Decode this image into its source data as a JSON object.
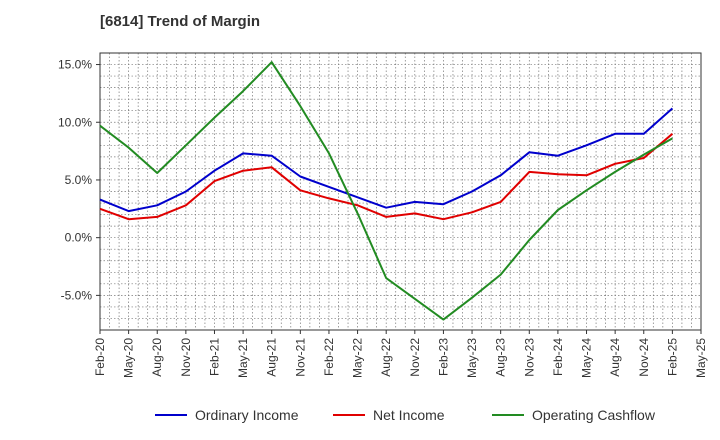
{
  "chart_data": {
    "type": "line",
    "title": "[6814]  Trend of Margin",
    "x": [
      "Feb-20",
      "May-20",
      "Aug-20",
      "Nov-20",
      "Feb-21",
      "May-21",
      "Aug-21",
      "Nov-21",
      "Feb-22",
      "May-22",
      "Aug-22",
      "Nov-22",
      "Feb-23",
      "May-23",
      "Aug-23",
      "Nov-23",
      "Feb-24",
      "May-24",
      "Aug-24",
      "Nov-24",
      "Feb-25",
      "May-25"
    ],
    "y_ticks": [
      15,
      10,
      5,
      0,
      -5
    ],
    "y_tick_labels": [
      "15.0%",
      "10.0%",
      "5.0%",
      "0.0%",
      "-5.0%"
    ],
    "ylim": [
      -8,
      16
    ],
    "grid": true,
    "legend_position": "bottom",
    "series": [
      {
        "name": "Ordinary Income",
        "color": "#0000cc",
        "values": [
          3.3,
          2.3,
          2.8,
          4.0,
          5.8,
          7.3,
          7.1,
          5.3,
          4.4,
          3.5,
          2.6,
          3.1,
          2.9,
          4.0,
          5.4,
          7.4,
          7.1,
          8.0,
          9.0,
          9.0,
          11.2,
          null
        ]
      },
      {
        "name": "Net Income",
        "color": "#e00000",
        "values": [
          2.5,
          1.6,
          1.8,
          2.8,
          4.9,
          5.8,
          6.1,
          4.1,
          3.4,
          2.8,
          1.8,
          2.1,
          1.6,
          2.2,
          3.1,
          5.7,
          5.5,
          5.4,
          6.4,
          6.9,
          9.0,
          null
        ]
      },
      {
        "name": "Operating Cashflow",
        "color": "#228b22",
        "values": [
          9.7,
          7.8,
          5.6,
          8.0,
          10.4,
          12.7,
          15.2,
          11.4,
          7.3,
          2.1,
          -3.5,
          -5.3,
          -7.1,
          -5.2,
          -3.2,
          -0.2,
          2.4,
          4.1,
          5.7,
          7.2,
          8.6,
          null
        ]
      }
    ]
  }
}
